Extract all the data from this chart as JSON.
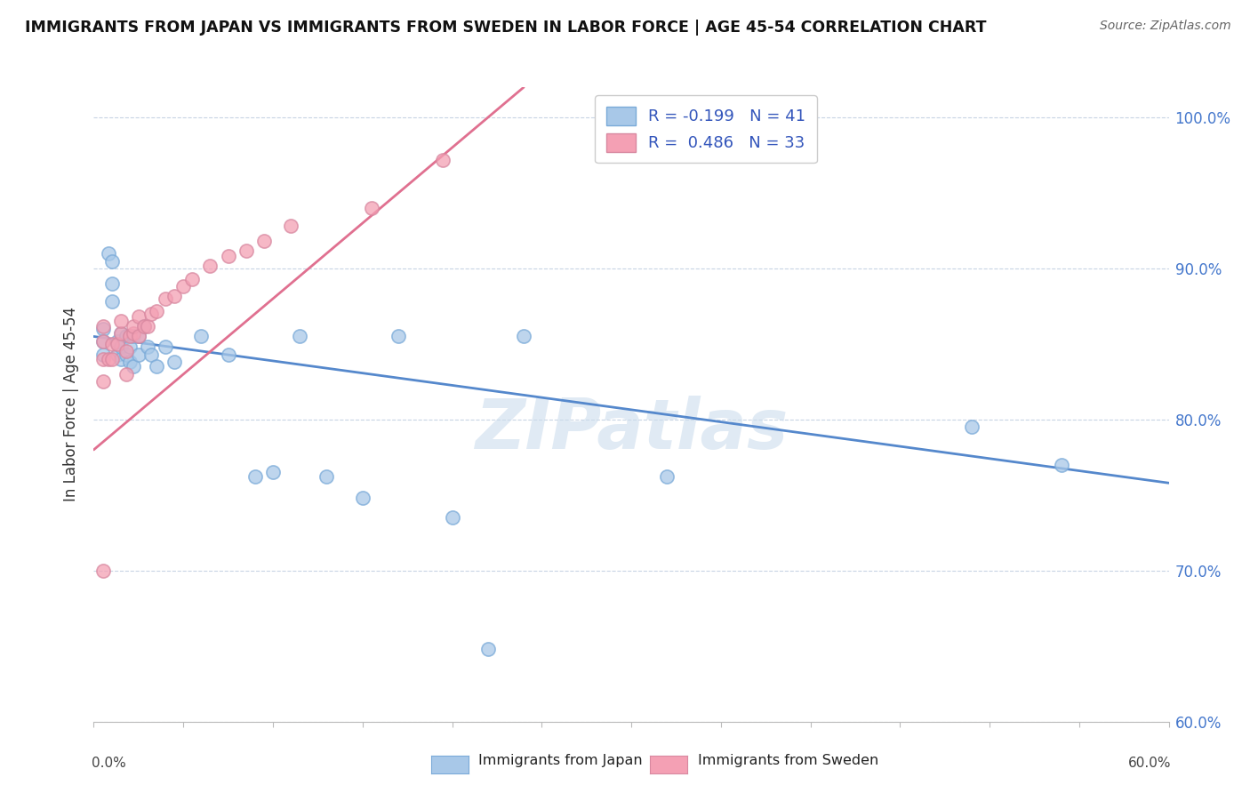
{
  "title": "IMMIGRANTS FROM JAPAN VS IMMIGRANTS FROM SWEDEN IN LABOR FORCE | AGE 45-54 CORRELATION CHART",
  "source": "Source: ZipAtlas.com",
  "ylabel": "In Labor Force | Age 45-54",
  "legend_japan": "Immigrants from Japan",
  "legend_sweden": "Immigrants from Sweden",
  "r_japan": -0.199,
  "n_japan": 41,
  "r_sweden": 0.486,
  "n_sweden": 33,
  "color_japan": "#a8c8e8",
  "color_sweden": "#f4a0b4",
  "color_japan_line": "#5588cc",
  "color_sweden_line": "#e07090",
  "watermark": "ZIPatlas",
  "xlim": [
    0.0,
    0.6
  ],
  "ylim": [
    0.6,
    1.02
  ],
  "yticks": [
    0.6,
    0.7,
    0.8,
    0.9,
    1.0
  ],
  "ytick_labels": [
    "60.0%",
    "70.0%",
    "80.0%",
    "90.0%",
    "100.0%"
  ],
  "japan_x": [
    0.005,
    0.005,
    0.005,
    0.008,
    0.01,
    0.01,
    0.01,
    0.013,
    0.013,
    0.015,
    0.015,
    0.015,
    0.018,
    0.018,
    0.02,
    0.02,
    0.02,
    0.022,
    0.022,
    0.025,
    0.025,
    0.028,
    0.03,
    0.032,
    0.035,
    0.04,
    0.045,
    0.06,
    0.075,
    0.09,
    0.1,
    0.115,
    0.13,
    0.15,
    0.17,
    0.2,
    0.22,
    0.24,
    0.32,
    0.49,
    0.54
  ],
  "japan_y": [
    0.86,
    0.852,
    0.843,
    0.91,
    0.905,
    0.89,
    0.878,
    0.852,
    0.843,
    0.857,
    0.848,
    0.84,
    0.855,
    0.843,
    0.855,
    0.848,
    0.838,
    0.855,
    0.835,
    0.855,
    0.843,
    0.862,
    0.848,
    0.843,
    0.835,
    0.848,
    0.838,
    0.855,
    0.843,
    0.762,
    0.765,
    0.855,
    0.762,
    0.748,
    0.855,
    0.735,
    0.648,
    0.855,
    0.762,
    0.795,
    0.77
  ],
  "sweden_x": [
    0.005,
    0.005,
    0.005,
    0.005,
    0.005,
    0.008,
    0.01,
    0.01,
    0.013,
    0.015,
    0.015,
    0.018,
    0.018,
    0.02,
    0.022,
    0.022,
    0.025,
    0.025,
    0.028,
    0.03,
    0.032,
    0.035,
    0.04,
    0.045,
    0.05,
    0.055,
    0.065,
    0.075,
    0.085,
    0.095,
    0.11,
    0.155,
    0.195
  ],
  "sweden_y": [
    0.7,
    0.825,
    0.84,
    0.852,
    0.862,
    0.84,
    0.84,
    0.85,
    0.85,
    0.857,
    0.865,
    0.83,
    0.845,
    0.855,
    0.857,
    0.862,
    0.855,
    0.868,
    0.862,
    0.862,
    0.87,
    0.872,
    0.88,
    0.882,
    0.888,
    0.893,
    0.902,
    0.908,
    0.912,
    0.918,
    0.928,
    0.94,
    0.972
  ],
  "japan_line_x": [
    0.0,
    0.6
  ],
  "japan_line_y": [
    0.855,
    0.758
  ],
  "sweden_line_x": [
    0.0,
    0.24
  ],
  "sweden_line_y": [
    0.78,
    1.02
  ]
}
